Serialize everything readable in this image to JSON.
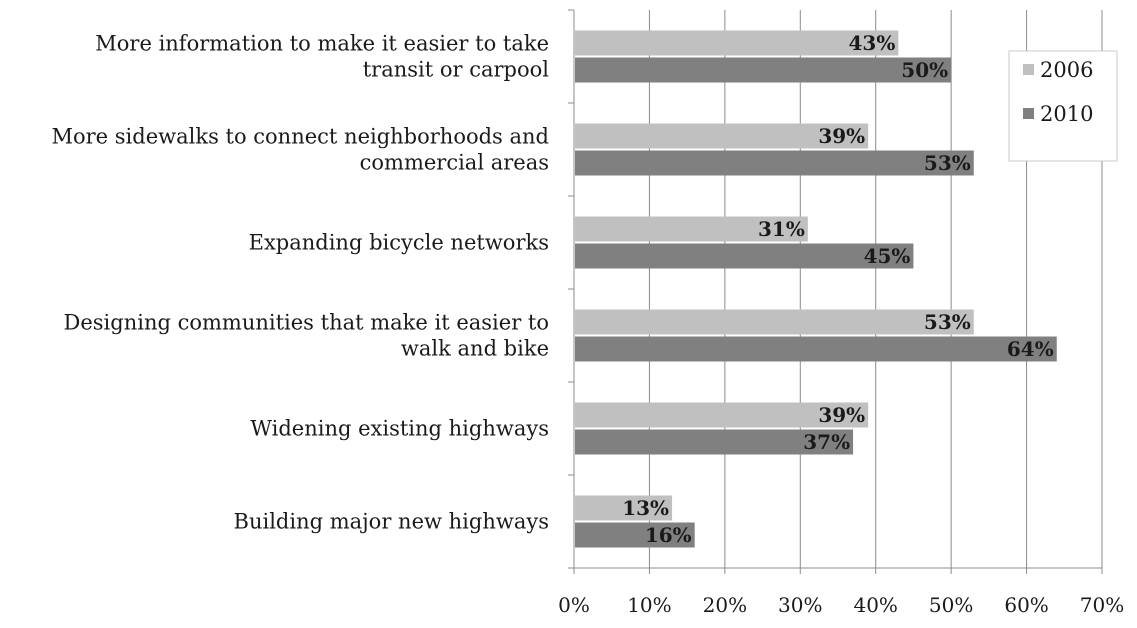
{
  "chart_data": {
    "type": "bar",
    "orientation": "horizontal",
    "title": "",
    "xlabel": "",
    "ylabel": "",
    "categories": [
      [
        "More information to make it easier to take",
        "transit or carpool"
      ],
      [
        "More sidewalks to connect neighborhoods  and",
        "commercial areas"
      ],
      [
        "Expanding bicycle networks"
      ],
      [
        "Designing communities that make it easier to",
        "walk and bike"
      ],
      [
        "Widening existing highways"
      ],
      [
        "Building major new highways"
      ]
    ],
    "series": [
      {
        "name": "2006",
        "color": "#c0c0c0",
        "values": [
          43,
          39,
          31,
          53,
          39,
          13
        ],
        "labels": [
          "43%",
          "39%",
          "31%",
          "53%",
          "39%",
          "13%"
        ]
      },
      {
        "name": "2010",
        "color": "#808080",
        "values": [
          50,
          53,
          45,
          64,
          37,
          16
        ],
        "labels": [
          "50%",
          "53%",
          "45%",
          "64%",
          "37%",
          "16%"
        ]
      }
    ],
    "xlim": [
      0,
      70
    ],
    "xticks": [
      0,
      10,
      20,
      30,
      40,
      50,
      60,
      70
    ],
    "xtick_labels": [
      "0%",
      "10%",
      "20%",
      "30%",
      "40%",
      "50%",
      "60%",
      "70%"
    ],
    "grid": true,
    "legend_position": "top-right"
  }
}
